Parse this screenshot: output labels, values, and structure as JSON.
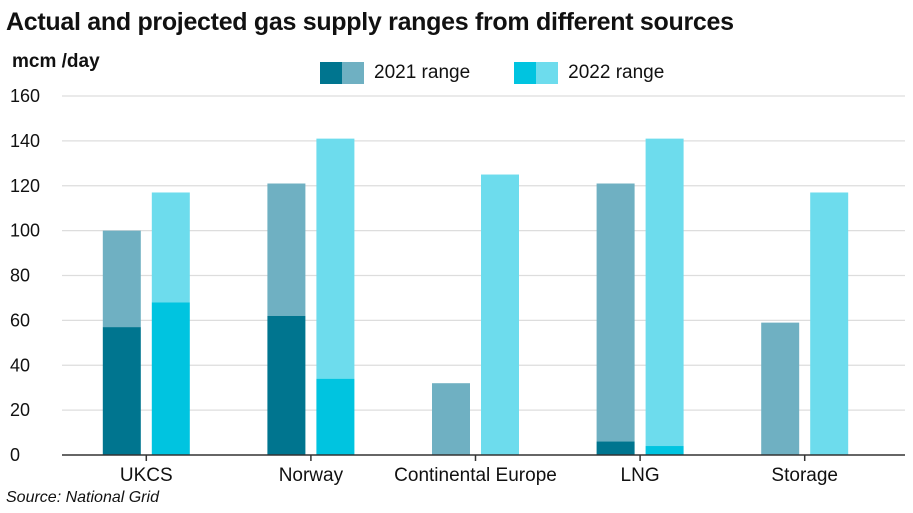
{
  "chart_data": {
    "type": "bar",
    "title": "Actual and projected gas supply ranges from different sources",
    "ylabel": "mcm /day",
    "source": "Source: National Grid",
    "ylim": [
      0,
      160
    ],
    "yticks": [
      0,
      20,
      40,
      60,
      80,
      100,
      120,
      140,
      160
    ],
    "grid": true,
    "legend_position": "top-center",
    "categories": [
      "UKCS",
      "Norway",
      "Continental Europe",
      "LNG",
      "Storage"
    ],
    "series": [
      {
        "name": "2021 range",
        "low_color": "#00758f",
        "high_color": "#6fb0c2",
        "low": [
          57,
          62,
          0,
          6,
          0
        ],
        "high": [
          100,
          121,
          32,
          121,
          59
        ]
      },
      {
        "name": "2022 range",
        "low_color": "#00c4e0",
        "high_color": "#6ddced",
        "low": [
          68,
          34,
          0,
          4,
          0
        ],
        "high": [
          117,
          141,
          125,
          141,
          117
        ]
      }
    ],
    "colors": {
      "grid": "#dddddd",
      "axis": "#333333"
    }
  }
}
